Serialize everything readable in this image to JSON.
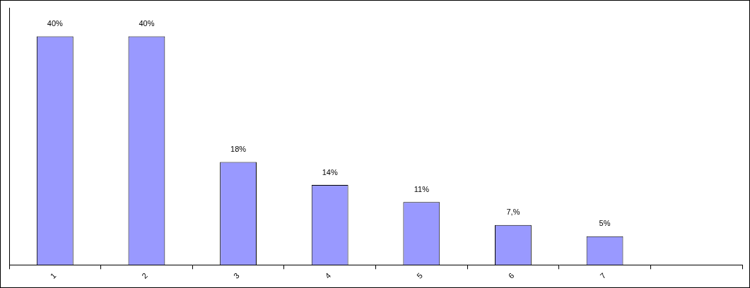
{
  "chart_data": {
    "type": "bar",
    "categories": [
      "1",
      "2",
      "3",
      "4",
      "5",
      "6",
      "7",
      null
    ],
    "values": [
      40,
      40,
      18,
      14,
      11,
      7,
      5,
      null
    ],
    "value_labels": [
      "40%",
      "40%",
      "18%",
      "14%",
      "11%",
      "7,%",
      "5%",
      null
    ],
    "color": "#9999ff",
    "ylim": [
      0,
      45
    ],
    "grid": false,
    "data_labels": true,
    "tick_labels": "x"
  }
}
